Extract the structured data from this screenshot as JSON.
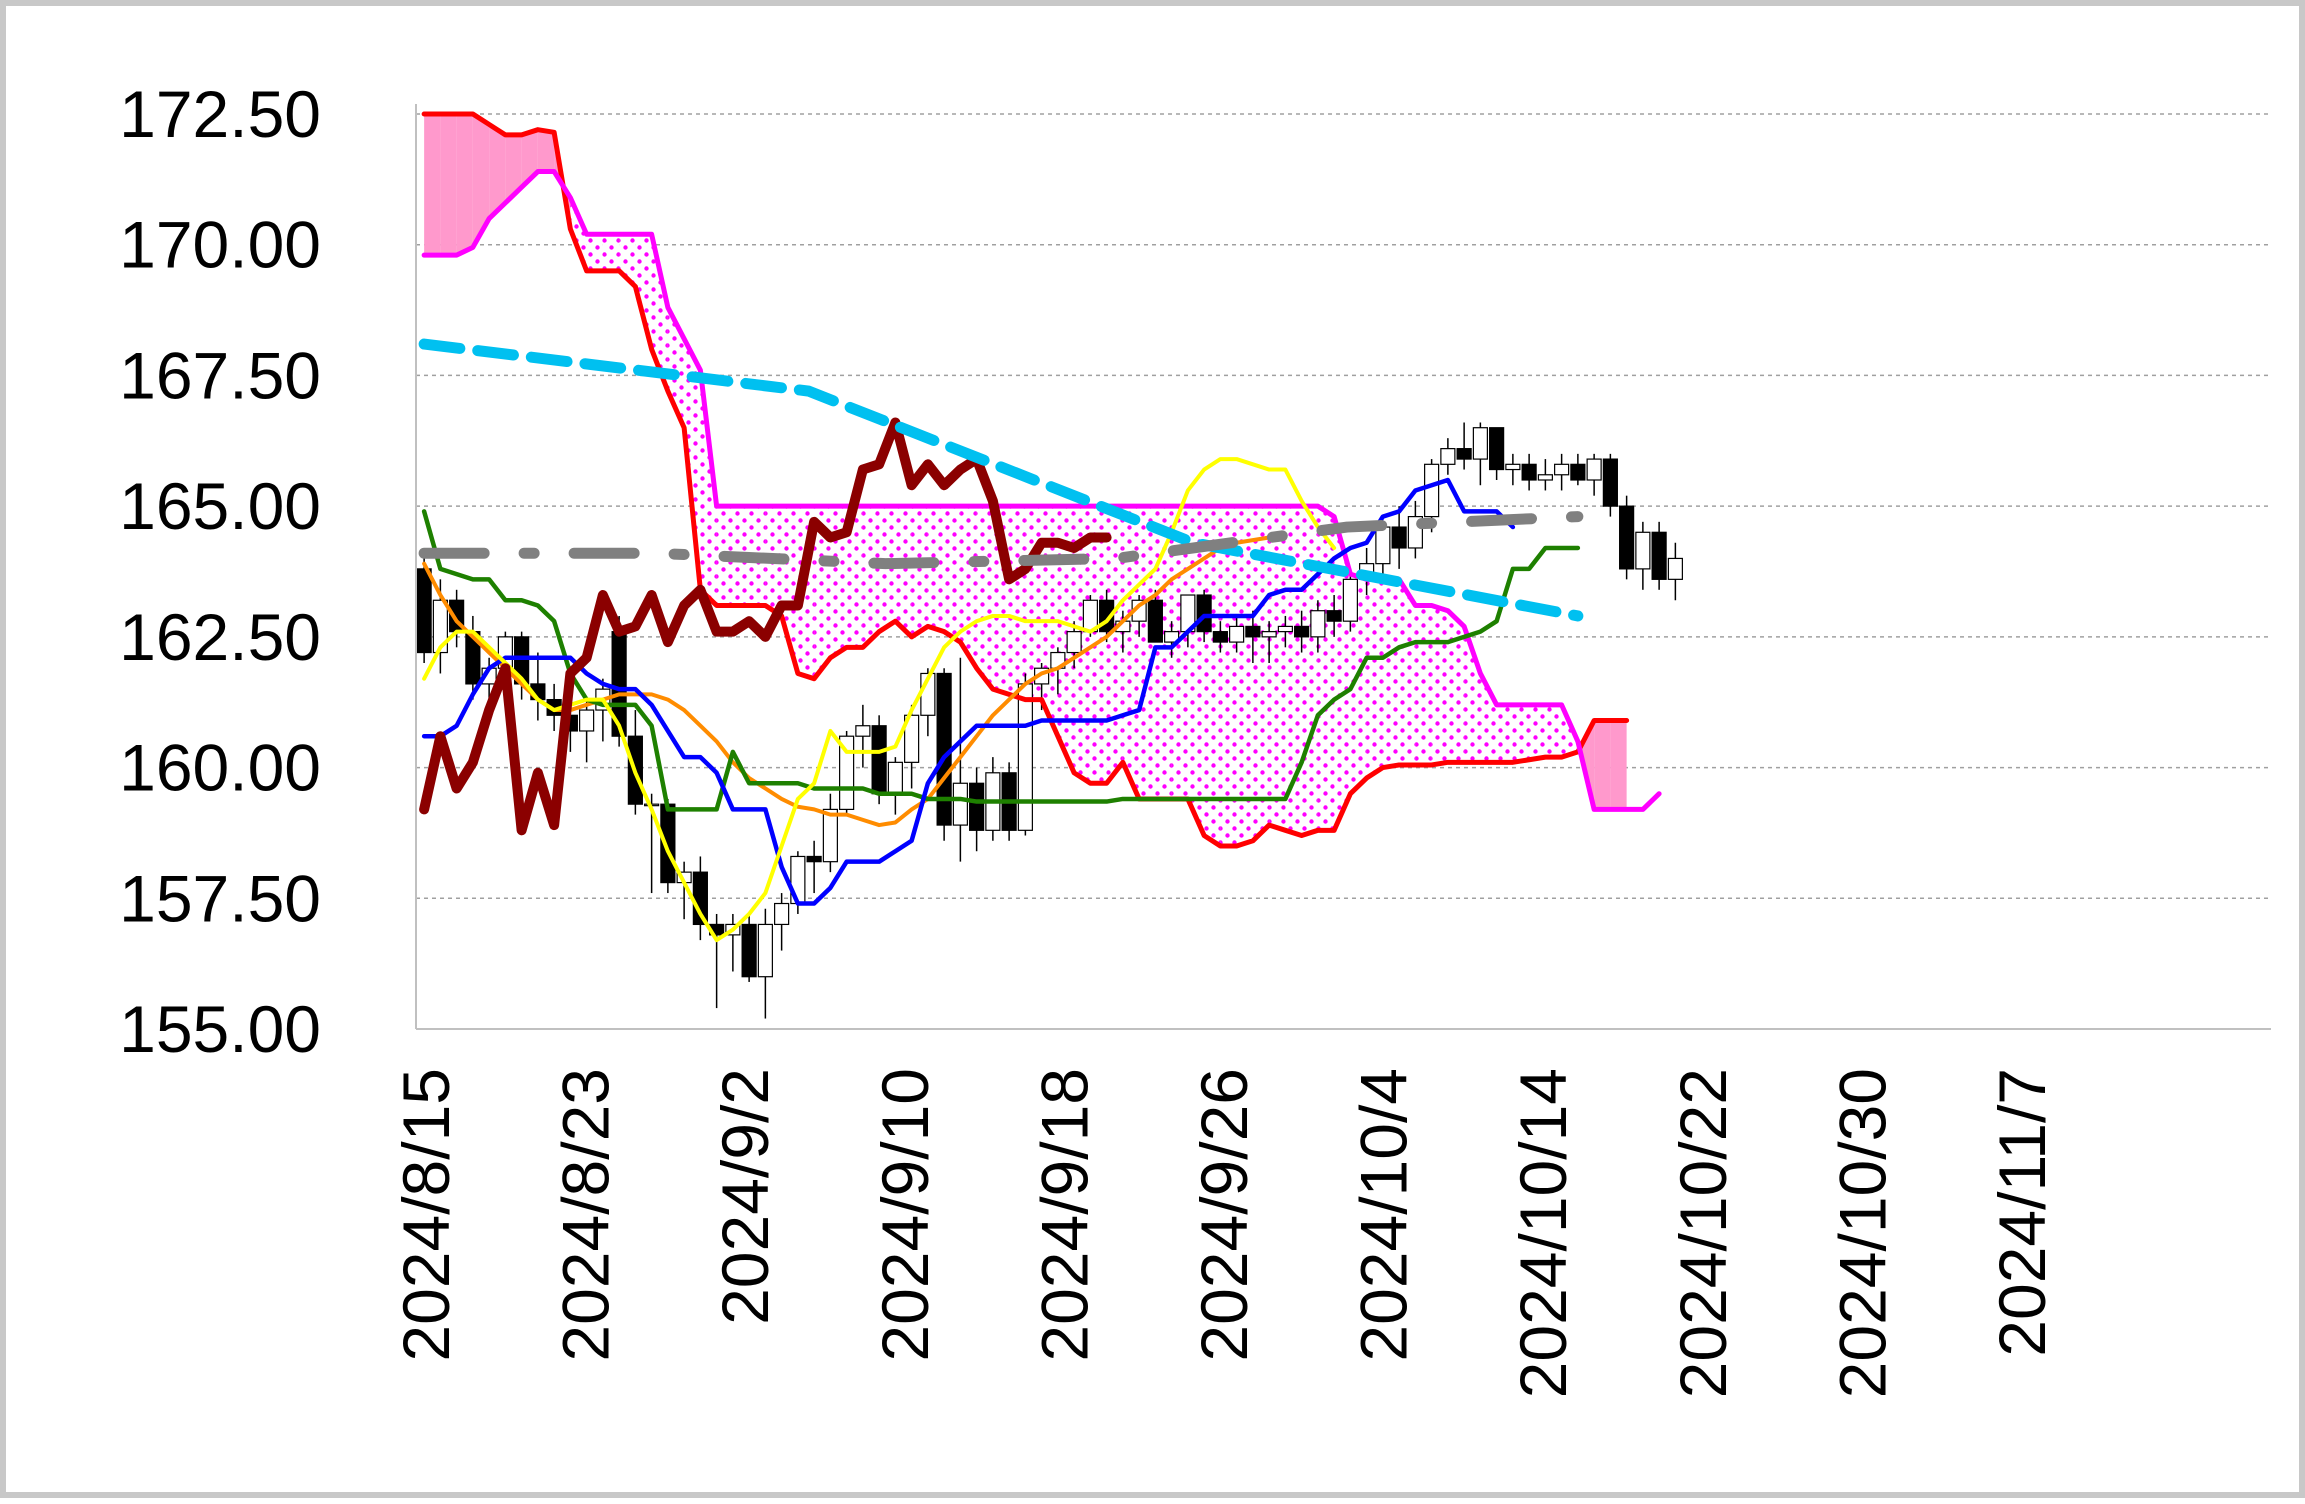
{
  "chart_data": {
    "type": "line",
    "title": "",
    "xlabel": "",
    "ylabel": "",
    "ylim": [
      155,
      172.5
    ],
    "yticks": [
      "172.50",
      "170.00",
      "167.50",
      "165.00",
      "162.50",
      "160.00",
      "157.50",
      "155.00"
    ],
    "xticks": [
      "2024/8/15",
      "2024/8/23",
      "2024/9/2",
      "2024/9/10",
      "2024/9/18",
      "2024/9/26",
      "2024/10/4",
      "2024/10/14",
      "2024/10/22",
      "2024/10/30",
      "2024/11/7"
    ],
    "grid": "horizontal dashed",
    "legend": "none",
    "candles": [
      [
        163.8,
        164.1,
        162.0,
        162.2
      ],
      [
        162.2,
        163.6,
        161.8,
        163.2
      ],
      [
        163.2,
        163.4,
        162.3,
        162.6
      ],
      [
        162.6,
        162.9,
        161.3,
        161.6
      ],
      [
        161.6,
        162.1,
        160.9,
        161.9
      ],
      [
        161.9,
        162.6,
        161.5,
        162.5
      ],
      [
        162.5,
        162.6,
        161.3,
        161.6
      ],
      [
        161.6,
        162.2,
        160.9,
        161.3
      ],
      [
        161.3,
        161.6,
        160.7,
        161.0
      ],
      [
        161.0,
        161.4,
        160.3,
        160.7
      ],
      [
        160.7,
        161.3,
        160.1,
        161.1
      ],
      [
        161.1,
        161.7,
        160.5,
        161.5
      ],
      [
        162.6,
        162.9,
        160.4,
        160.6
      ],
      [
        160.6,
        161.1,
        159.1,
        159.3
      ],
      [
        159.3,
        159.5,
        157.6,
        159.3
      ],
      [
        159.3,
        159.4,
        157.6,
        157.8
      ],
      [
        157.8,
        158.2,
        157.1,
        158.0
      ],
      [
        158.0,
        158.3,
        156.7,
        157.0
      ],
      [
        157.0,
        157.2,
        155.4,
        156.8
      ],
      [
        156.8,
        157.2,
        156.1,
        157.0
      ],
      [
        157.0,
        157.2,
        155.9,
        156.0
      ],
      [
        156.0,
        157.3,
        155.2,
        157.0
      ],
      [
        157.0,
        157.6,
        156.5,
        157.4
      ],
      [
        157.4,
        158.4,
        157.2,
        158.3
      ],
      [
        158.3,
        158.6,
        157.6,
        158.2
      ],
      [
        158.2,
        159.5,
        158.0,
        159.2
      ],
      [
        159.2,
        160.7,
        159.1,
        160.6
      ],
      [
        160.6,
        161.2,
        160.0,
        160.8
      ],
      [
        160.8,
        161.0,
        159.3,
        159.5
      ],
      [
        159.5,
        160.2,
        159.1,
        160.1
      ],
      [
        160.1,
        161.2,
        159.6,
        161.0
      ],
      [
        161.0,
        161.9,
        160.6,
        161.8
      ],
      [
        161.8,
        161.9,
        158.6,
        158.9
      ],
      [
        158.9,
        162.1,
        158.2,
        159.7
      ],
      [
        159.7,
        160.0,
        158.4,
        158.8
      ],
      [
        158.8,
        160.2,
        158.6,
        159.9
      ],
      [
        159.9,
        160.1,
        158.6,
        158.8
      ],
      [
        158.8,
        161.8,
        158.7,
        161.6
      ],
      [
        161.6,
        162.0,
        161.1,
        161.9
      ],
      [
        161.9,
        162.3,
        161.4,
        162.2
      ],
      [
        162.2,
        162.8,
        161.9,
        162.6
      ],
      [
        162.6,
        163.3,
        162.5,
        163.2
      ],
      [
        163.2,
        163.4,
        162.4,
        162.6
      ],
      [
        162.6,
        163.0,
        162.2,
        162.8
      ],
      [
        162.8,
        163.3,
        162.5,
        163.2
      ],
      [
        163.2,
        163.4,
        162.4,
        162.4
      ],
      [
        162.4,
        162.8,
        162.1,
        162.6
      ],
      [
        162.6,
        163.3,
        162.3,
        163.3
      ],
      [
        163.3,
        163.4,
        162.4,
        162.6
      ],
      [
        162.6,
        162.8,
        162.2,
        162.4
      ],
      [
        162.4,
        162.9,
        162.2,
        162.7
      ],
      [
        162.7,
        163.0,
        162.0,
        162.5
      ],
      [
        162.5,
        162.8,
        162.0,
        162.6
      ],
      [
        162.6,
        162.9,
        162.3,
        162.7
      ],
      [
        162.7,
        163.0,
        162.2,
        162.5
      ],
      [
        162.5,
        163.2,
        162.2,
        163.0
      ],
      [
        163.0,
        163.3,
        162.5,
        162.8
      ],
      [
        162.8,
        163.8,
        162.6,
        163.6
      ],
      [
        163.6,
        164.2,
        163.3,
        163.9
      ],
      [
        163.9,
        164.7,
        163.6,
        164.6
      ],
      [
        164.6,
        165.0,
        163.8,
        164.2
      ],
      [
        164.2,
        165.1,
        164.0,
        164.8
      ],
      [
        164.8,
        165.9,
        164.5,
        165.8
      ],
      [
        165.8,
        166.3,
        165.6,
        166.1
      ],
      [
        166.1,
        166.6,
        165.7,
        165.9
      ],
      [
        165.9,
        166.6,
        165.4,
        166.5
      ],
      [
        166.5,
        166.5,
        165.5,
        165.7
      ],
      [
        165.7,
        166.0,
        165.4,
        165.8
      ],
      [
        165.8,
        166.0,
        165.3,
        165.5
      ],
      [
        165.5,
        165.9,
        165.3,
        165.6
      ],
      [
        165.6,
        166.0,
        165.3,
        165.8
      ],
      [
        165.8,
        166.0,
        165.4,
        165.5
      ],
      [
        165.5,
        166.0,
        165.2,
        165.9
      ],
      [
        165.9,
        166.0,
        164.8,
        165.0
      ],
      [
        165.0,
        165.2,
        163.6,
        163.8
      ],
      [
        163.8,
        164.7,
        163.4,
        164.5
      ],
      [
        164.5,
        164.7,
        163.4,
        163.6
      ],
      [
        163.6,
        164.3,
        163.2,
        164.0
      ]
    ],
    "series": [
      {
        "name": "",
        "color": "#8b0000",
        "values": [
          159.2,
          160.6,
          159.6,
          160.1,
          161.1,
          161.9,
          158.8,
          159.9,
          158.9,
          161.8,
          162.1,
          163.3,
          162.6,
          162.7,
          163.3,
          162.4,
          163.1,
          163.4,
          162.6,
          162.6,
          162.8,
          162.5,
          163.1,
          163.1,
          164.7,
          164.4,
          164.5,
          165.7,
          165.8,
          166.6,
          165.4,
          165.8,
          165.4,
          165.7,
          165.9,
          165.1,
          163.6,
          163.8,
          164.3,
          164.3,
          164.2,
          164.4,
          164.4
        ]
      },
      {
        "name": "",
        "color": "#ff0000",
        "values": [
          172.5,
          172.5,
          172.5,
          172.5,
          172.3,
          172.1,
          172.1,
          172.2,
          172.15,
          170.3,
          169.5,
          169.5,
          169.5,
          169.2,
          168.0,
          167.2,
          166.5,
          163.4,
          163.1,
          163.1,
          163.1,
          163.1,
          162.9,
          161.8,
          161.7,
          162.1,
          162.3,
          162.3,
          162.6,
          162.8,
          162.5,
          162.7,
          162.6,
          162.4,
          161.9,
          161.5,
          161.4,
          161.3,
          161.3,
          160.6,
          159.9,
          159.7,
          159.7,
          160.1,
          159.4,
          159.4,
          159.4,
          159.4,
          158.7,
          158.5,
          158.5,
          158.6,
          158.9,
          158.8,
          158.7,
          158.8,
          158.8,
          159.5,
          159.8,
          160.0,
          160.05,
          160.05,
          160.05,
          160.1,
          160.1,
          160.1,
          160.1,
          160.1,
          160.15,
          160.2,
          160.2,
          160.3,
          160.9,
          160.9,
          160.9
        ]
      },
      {
        "name": "",
        "color": "#ff00ff",
        "values": [
          169.8,
          169.8,
          169.8,
          169.95,
          170.5,
          170.8,
          171.1,
          171.4,
          171.4,
          170.9,
          170.2,
          170.2,
          170.2,
          170.2,
          170.2,
          168.8,
          168.2,
          167.6,
          165.0,
          165.0,
          165.0,
          165.0,
          165.0,
          165.0,
          165.0,
          165.0,
          165.0,
          165.0,
          165.0,
          165.0,
          165.0,
          165.0,
          165.0,
          165.0,
          165.0,
          165.0,
          165.0,
          165.0,
          165.0,
          165.0,
          165.0,
          165.0,
          165.0,
          165.0,
          165.0,
          165.0,
          165.0,
          165.0,
          165.0,
          165.0,
          165.0,
          165.0,
          165.0,
          165.0,
          165.0,
          165.0,
          164.8,
          163.7,
          163.6,
          163.6,
          163.6,
          163.1,
          163.1,
          163.0,
          162.7,
          161.8,
          161.2,
          161.2,
          161.2,
          161.2,
          161.2,
          160.5,
          159.2,
          159.2,
          159.2,
          159.2,
          159.5
        ]
      },
      {
        "name": "",
        "color": "#1e8000",
        "values": [
          164.9,
          163.8,
          163.7,
          163.6,
          163.6,
          163.2,
          163.2,
          163.1,
          162.8,
          161.8,
          161.3,
          161.2,
          161.2,
          161.2,
          160.8,
          159.2,
          159.2,
          159.2,
          159.2,
          160.3,
          159.7,
          159.7,
          159.7,
          159.7,
          159.6,
          159.6,
          159.6,
          159.6,
          159.5,
          159.5,
          159.5,
          159.4,
          159.4,
          159.4,
          159.35,
          159.35,
          159.35,
          159.35,
          159.35,
          159.35,
          159.35,
          159.35,
          159.35,
          159.4,
          159.4,
          159.4,
          159.4,
          159.4,
          159.4,
          159.4,
          159.4,
          159.4,
          159.4,
          159.4,
          160.1,
          161.0,
          161.3,
          161.5,
          162.1,
          162.1,
          162.3,
          162.4,
          162.4,
          162.4,
          162.5,
          162.6,
          162.8,
          163.8,
          163.8,
          164.2,
          164.2,
          164.2
        ]
      },
      {
        "name": "",
        "color": "#0000ff",
        "values": [
          160.6,
          160.6,
          160.8,
          161.4,
          161.9,
          162.1,
          162.1,
          162.1,
          162.1,
          162.1,
          161.8,
          161.6,
          161.5,
          161.5,
          161.2,
          160.7,
          160.2,
          160.2,
          159.9,
          159.2,
          159.2,
          159.2,
          158.1,
          157.4,
          157.4,
          157.7,
          158.2,
          158.2,
          158.2,
          158.4,
          158.6,
          159.7,
          160.2,
          160.5,
          160.8,
          160.8,
          160.8,
          160.8,
          160.9,
          160.9,
          160.9,
          160.9,
          160.9,
          161.0,
          161.1,
          162.3,
          162.3,
          162.6,
          162.9,
          162.9,
          162.9,
          162.9,
          163.3,
          163.4,
          163.4,
          163.7,
          164.0,
          164.2,
          164.3,
          164.8,
          164.9,
          165.3,
          165.4,
          165.5,
          164.9,
          164.9,
          164.9,
          164.6
        ]
      },
      {
        "name": "",
        "color": "#ffff00",
        "values": [
          161.7,
          162.3,
          162.6,
          162.6,
          162.3,
          162.0,
          161.7,
          161.3,
          161.1,
          161.2,
          161.3,
          161.3,
          160.8,
          159.9,
          159.2,
          158.4,
          157.8,
          157.2,
          156.7,
          156.9,
          157.2,
          157.6,
          158.5,
          159.4,
          159.7,
          160.7,
          160.3,
          160.3,
          160.3,
          160.4,
          161.1,
          161.7,
          162.3,
          162.6,
          162.8,
          162.9,
          162.9,
          162.8,
          162.8,
          162.8,
          162.7,
          162.6,
          162.8,
          163.2,
          163.5,
          163.8,
          164.5,
          165.3,
          165.7,
          165.9,
          165.9,
          165.8,
          165.7,
          165.7,
          165.1,
          164.6,
          164.2
        ]
      },
      {
        "name": "",
        "color": "#ff8c00",
        "values": [
          163.9,
          163.3,
          162.8,
          162.5,
          162.2,
          161.9,
          161.6,
          161.3,
          161.1,
          161.1,
          161.2,
          161.3,
          161.4,
          161.4,
          161.4,
          161.3,
          161.1,
          160.8,
          160.5,
          160.1,
          159.8,
          159.6,
          159.4,
          159.25,
          159.2,
          159.1,
          159.1,
          159.0,
          158.9,
          158.95,
          159.2,
          159.4,
          159.8,
          160.2,
          160.6,
          161.0,
          161.3,
          161.6,
          161.8,
          161.9,
          162.1,
          162.3,
          162.5,
          162.8,
          163.1,
          163.3,
          163.6,
          163.8,
          164.0,
          164.2,
          164.3,
          164.35,
          164.4
        ]
      },
      {
        "name": "",
        "color": "#00c0f0",
        "values": [
          168.1,
          167.2,
          164.3,
          162.9
        ]
      },
      {
        "name": "",
        "color": "#808080",
        "values": [
          164.1,
          164.1,
          163.9,
          164.0,
          164.6,
          164.8
        ]
      }
    ]
  }
}
